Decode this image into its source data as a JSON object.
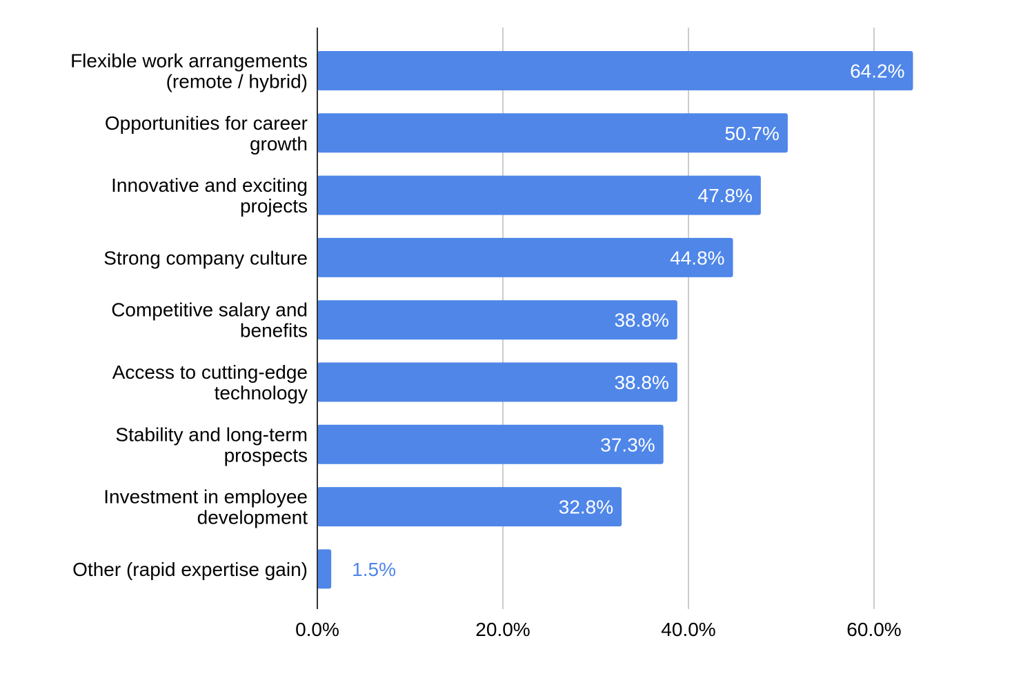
{
  "chart_data": {
    "type": "bar",
    "orientation": "horizontal",
    "title": "",
    "xlabel": "",
    "ylabel": "",
    "xlim": [
      0,
      70
    ],
    "grid": true,
    "legend": "none",
    "categories": [
      [
        "Flexible work arrangements",
        "(remote / hybrid)"
      ],
      [
        "Opportunities for career",
        "growth"
      ],
      [
        "Innovative and exciting",
        "projects"
      ],
      [
        "Strong company culture"
      ],
      [
        "Competitive salary and",
        "benefits"
      ],
      [
        "Access to cutting-edge",
        "technology"
      ],
      [
        "Stability and long-term",
        "prospects"
      ],
      [
        "Investment in employee",
        "development"
      ],
      [
        "Other (rapid expertise gain)"
      ]
    ],
    "values": [
      64.2,
      50.7,
      47.8,
      44.8,
      38.8,
      38.8,
      37.3,
      32.8,
      1.5
    ],
    "data_labels": [
      "64.2%",
      "50.7%",
      "47.8%",
      "44.8%",
      "38.8%",
      "38.8%",
      "37.3%",
      "32.8%",
      "1.5%"
    ],
    "ticks": [
      0,
      20,
      40,
      60
    ],
    "tick_labels": [
      "0.0%",
      "20.0%",
      "40.0%",
      "60.0%"
    ],
    "colors": {
      "bar": "#4f86e8",
      "grid": "#cccccc",
      "axis": "#333333",
      "label_inside": "#ffffff",
      "label_outside": "#4f86e8"
    }
  }
}
